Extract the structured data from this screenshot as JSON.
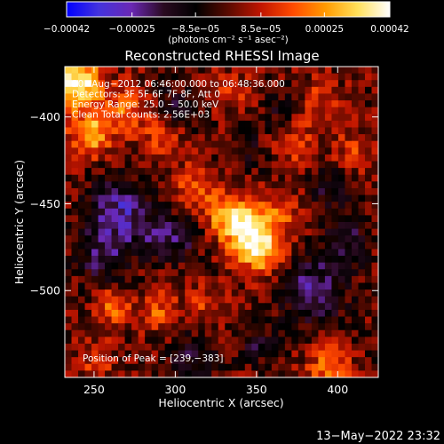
{
  "chart_data": {
    "type": "heatmap",
    "title": "Reconstructed RHESSI Image",
    "xlabel": "Heliocentric X (arcsec)",
    "ylabel": "Heliocentric Y (arcsec)",
    "xlim": [
      232,
      425
    ],
    "ylim": [
      -550,
      -371
    ],
    "x_ticks": [
      {
        "value": 250,
        "label": "250"
      },
      {
        "value": 300,
        "label": "300"
      },
      {
        "value": 350,
        "label": "350"
      },
      {
        "value": 400,
        "label": "400"
      }
    ],
    "y_ticks": [
      {
        "value": -400,
        "label": "−400"
      },
      {
        "value": -450,
        "label": "−450"
      },
      {
        "value": -500,
        "label": "−500"
      }
    ],
    "colorbar": {
      "min": -0.00042,
      "max": 0.00042,
      "ticks": [
        {
          "value": -0.00042,
          "label": "−0.00042"
        },
        {
          "value": -0.00025,
          "label": "−0.00025"
        },
        {
          "value": -8.5e-05,
          "label": "−8.5e−05"
        },
        {
          "value": 8.5e-05,
          "label": "8.5e−05"
        },
        {
          "value": 0.00025,
          "label": "0.00025"
        },
        {
          "value": 0.00042,
          "label": "0.00042"
        }
      ],
      "unit_label": "(photons cm⁻² s⁻¹ asec⁻²)"
    },
    "annotations": [
      "30−Aug−2012 06:46:00.000 to 06:48:36.000",
      "Detectors: 3F 5F 6F 7F 8F, Att 0",
      "Energy Range: 25.0 − 50.0 keV",
      "Clean    Total counts: 2.56E+03"
    ],
    "peak_label": "Position of Peak = [239,−383]",
    "peak": [
      239,
      -383
    ],
    "grid": false,
    "colors": {
      "background": "#000000",
      "text": "#ffffff",
      "colormap": [
        "#0000ff",
        "#4433dd",
        "#6a28b4",
        "#2a0a20",
        "#000000",
        "#5a0a00",
        "#c01500",
        "#ff4a00",
        "#ff9a00",
        "#ffe05a",
        "#ffffff"
      ]
    },
    "intensity_field": {
      "grid_cols": 47,
      "grid_rows": 46,
      "components": [
        {
          "x": 240,
          "y": -380,
          "amp": 0.00042,
          "sigma": 10
        },
        {
          "x": 248,
          "y": -410,
          "amp": 0.00028,
          "sigma": 9
        },
        {
          "x": 270,
          "y": -395,
          "amp": 0.00018,
          "sigma": 10
        },
        {
          "x": 352,
          "y": -475,
          "amp": 0.00036,
          "sigma": 10
        },
        {
          "x": 340,
          "y": -462,
          "amp": 0.00026,
          "sigma": 10
        },
        {
          "x": 330,
          "y": -455,
          "amp": 0.00018,
          "sigma": 9
        },
        {
          "x": 312,
          "y": -440,
          "amp": 0.00016,
          "sigma": 9
        },
        {
          "x": 365,
          "y": -455,
          "amp": 0.00015,
          "sigma": 9
        },
        {
          "x": 292,
          "y": -412,
          "amp": 0.00015,
          "sigma": 9
        },
        {
          "x": 335,
          "y": -385,
          "amp": 0.00012,
          "sigma": 8
        },
        {
          "x": 375,
          "y": -415,
          "amp": 0.00012,
          "sigma": 10
        },
        {
          "x": 390,
          "y": -390,
          "amp": 0.00011,
          "sigma": 9
        },
        {
          "x": 410,
          "y": -420,
          "amp": 0.00012,
          "sigma": 9
        },
        {
          "x": 262,
          "y": -510,
          "amp": 0.00018,
          "sigma": 8
        },
        {
          "x": 290,
          "y": -512,
          "amp": 0.00016,
          "sigma": 8
        },
        {
          "x": 318,
          "y": -508,
          "amp": 0.00012,
          "sigma": 8
        },
        {
          "x": 395,
          "y": -545,
          "amp": 0.00022,
          "sigma": 9
        },
        {
          "x": 250,
          "y": -540,
          "amp": 0.00011,
          "sigma": 9
        },
        {
          "x": 265,
          "y": -455,
          "amp": -0.00026,
          "sigma": 13
        },
        {
          "x": 255,
          "y": -480,
          "amp": -0.00018,
          "sigma": 11
        },
        {
          "x": 290,
          "y": -470,
          "amp": -0.00015,
          "sigma": 9
        },
        {
          "x": 305,
          "y": -470,
          "amp": -0.00012,
          "sigma": 9
        },
        {
          "x": 385,
          "y": -500,
          "amp": -0.00024,
          "sigma": 13
        },
        {
          "x": 405,
          "y": -470,
          "amp": -0.00016,
          "sigma": 10
        },
        {
          "x": 300,
          "y": -395,
          "amp": -0.00014,
          "sigma": 9
        },
        {
          "x": 310,
          "y": -540,
          "amp": -0.00014,
          "sigma": 10
        },
        {
          "x": 350,
          "y": -530,
          "amp": -0.00012,
          "sigma": 9
        },
        {
          "x": 395,
          "y": -440,
          "amp": -0.00013,
          "sigma": 9
        },
        {
          "x": 365,
          "y": -395,
          "amp": -0.0001,
          "sigma": 8
        },
        {
          "x": 345,
          "y": -420,
          "amp": -0.0001,
          "sigma": 8
        }
      ],
      "noise_amplitude": 8.5e-05,
      "noise_seed": 17
    }
  },
  "footer": {
    "timestamp": "13−May−2022 23:32"
  }
}
